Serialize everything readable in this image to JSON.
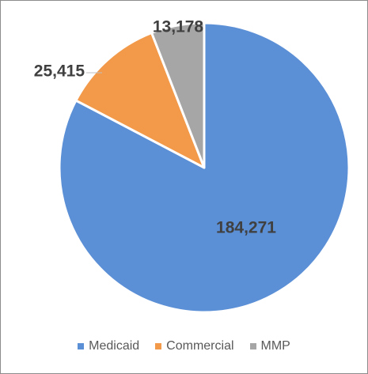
{
  "chart_data": {
    "type": "pie",
    "slices": [
      {
        "name": "Medicaid",
        "value": 184271,
        "label": "184,271",
        "color": "#5B8FD6"
      },
      {
        "name": "Commercial",
        "value": 25415,
        "label": "25,415",
        "color": "#F29A4A"
      },
      {
        "name": "MMP",
        "value": 13178,
        "label": "13,178",
        "color": "#A6A6A6"
      }
    ],
    "legend_position": "bottom",
    "start": "12 o'clock, clockwise"
  }
}
